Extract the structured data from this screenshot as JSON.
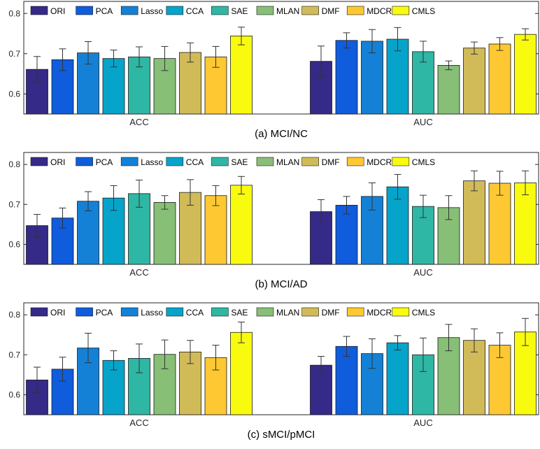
{
  "chart_data": [
    {
      "type": "bar",
      "title": "(a) MCI/NC",
      "categories": [
        "ACC",
        "AUC"
      ],
      "ylim": [
        0.55,
        0.83
      ],
      "yticks": [
        0.6,
        0.7,
        0.8
      ],
      "ytick_labels": [
        "0.6",
        "0.7",
        "0.8"
      ],
      "series": [
        {
          "name": "ORI",
          "values": [
            0.661,
            0.681
          ],
          "errors": [
            0.032,
            0.038
          ]
        },
        {
          "name": "PCA",
          "values": [
            0.685,
            0.733
          ],
          "errors": [
            0.027,
            0.019
          ]
        },
        {
          "name": "Lasso",
          "values": [
            0.702,
            0.731
          ],
          "errors": [
            0.028,
            0.029
          ]
        },
        {
          "name": "CCA",
          "values": [
            0.688,
            0.736
          ],
          "errors": [
            0.021,
            0.029
          ]
        },
        {
          "name": "SAE",
          "values": [
            0.692,
            0.705
          ],
          "errors": [
            0.025,
            0.026
          ]
        },
        {
          "name": "MLAN",
          "values": [
            0.688,
            0.671
          ],
          "errors": [
            0.03,
            0.011
          ]
        },
        {
          "name": "DMF",
          "values": [
            0.703,
            0.714
          ],
          "errors": [
            0.024,
            0.015
          ]
        },
        {
          "name": "MDCR",
          "values": [
            0.692,
            0.724
          ],
          "errors": [
            0.026,
            0.016
          ]
        },
        {
          "name": "CMLS",
          "values": [
            0.744,
            0.748
          ],
          "errors": [
            0.022,
            0.014
          ]
        }
      ]
    },
    {
      "type": "bar",
      "title": "(b) MCI/AD",
      "categories": [
        "ACC",
        "AUC"
      ],
      "ylim": [
        0.55,
        0.83
      ],
      "yticks": [
        0.6,
        0.7,
        0.8
      ],
      "ytick_labels": [
        "0.6",
        "0.7",
        "0.8"
      ],
      "series": [
        {
          "name": "ORI",
          "values": [
            0.647,
            0.682
          ],
          "errors": [
            0.028,
            0.03
          ]
        },
        {
          "name": "PCA",
          "values": [
            0.666,
            0.698
          ],
          "errors": [
            0.025,
            0.022
          ]
        },
        {
          "name": "Lasso",
          "values": [
            0.708,
            0.72
          ],
          "errors": [
            0.024,
            0.034
          ]
        },
        {
          "name": "CCA",
          "values": [
            0.716,
            0.744
          ],
          "errors": [
            0.031,
            0.031
          ]
        },
        {
          "name": "SAE",
          "values": [
            0.727,
            0.695
          ],
          "errors": [
            0.034,
            0.028
          ]
        },
        {
          "name": "MLAN",
          "values": [
            0.705,
            0.692
          ],
          "errors": [
            0.017,
            0.03
          ]
        },
        {
          "name": "DMF",
          "values": [
            0.73,
            0.759
          ],
          "errors": [
            0.032,
            0.025
          ]
        },
        {
          "name": "MDCR",
          "values": [
            0.722,
            0.753
          ],
          "errors": [
            0.025,
            0.03
          ]
        },
        {
          "name": "CMLS",
          "values": [
            0.748,
            0.754
          ],
          "errors": [
            0.022,
            0.03
          ]
        }
      ]
    },
    {
      "type": "bar",
      "title": "(c) sMCI/pMCI",
      "categories": [
        "ACC",
        "AUC"
      ],
      "ylim": [
        0.55,
        0.83
      ],
      "yticks": [
        0.6,
        0.7,
        0.8
      ],
      "ytick_labels": [
        "0.6",
        "0.7",
        "0.8"
      ],
      "series": [
        {
          "name": "ORI",
          "values": [
            0.637,
            0.674
          ],
          "errors": [
            0.032,
            0.022
          ]
        },
        {
          "name": "PCA",
          "values": [
            0.664,
            0.721
          ],
          "errors": [
            0.03,
            0.025
          ]
        },
        {
          "name": "Lasso",
          "values": [
            0.717,
            0.703
          ],
          "errors": [
            0.037,
            0.037
          ]
        },
        {
          "name": "CCA",
          "values": [
            0.686,
            0.73
          ],
          "errors": [
            0.024,
            0.018
          ]
        },
        {
          "name": "SAE",
          "values": [
            0.691,
            0.7
          ],
          "errors": [
            0.036,
            0.042
          ]
        },
        {
          "name": "MLAN",
          "values": [
            0.701,
            0.743
          ],
          "errors": [
            0.036,
            0.033
          ]
        },
        {
          "name": "DMF",
          "values": [
            0.707,
            0.736
          ],
          "errors": [
            0.029,
            0.029
          ]
        },
        {
          "name": "MDCR",
          "values": [
            0.693,
            0.724
          ],
          "errors": [
            0.031,
            0.031
          ]
        },
        {
          "name": "CMLS",
          "values": [
            0.756,
            0.757
          ],
          "errors": [
            0.026,
            0.034
          ]
        }
      ]
    }
  ],
  "colors": [
    "#352a87",
    "#0f5cdd",
    "#1481d6",
    "#06a4ca",
    "#2eb7a4",
    "#87bf77",
    "#d1bb59",
    "#fec832",
    "#f9fb0e"
  ],
  "edge_color": "#1a1a1a",
  "error_color": "#333333"
}
